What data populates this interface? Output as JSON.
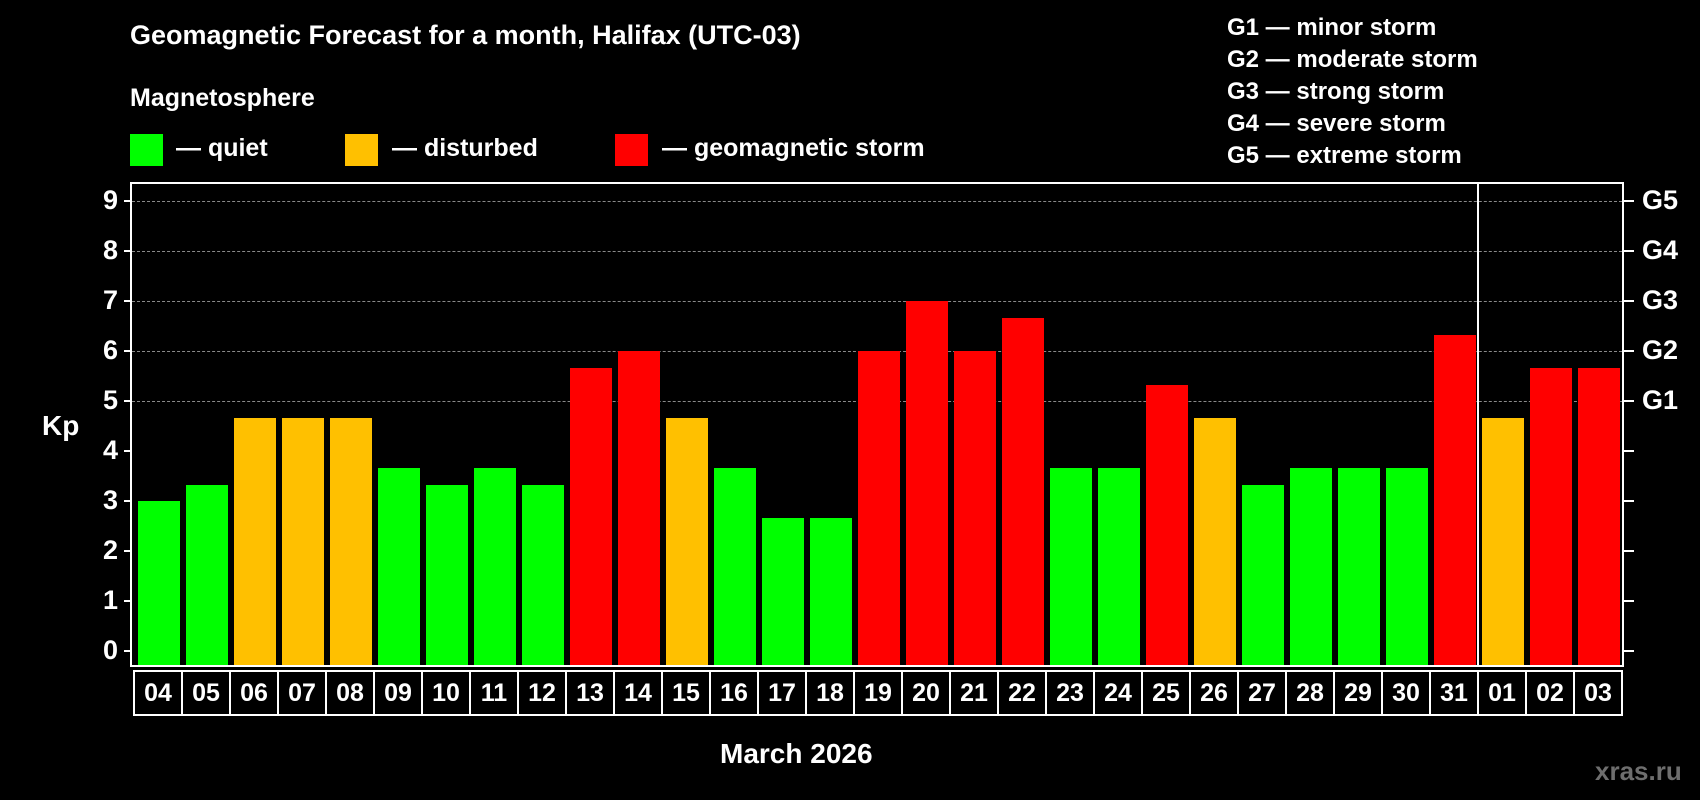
{
  "title": "Geomagnetic Forecast for a month, Halifax (UTC-03)",
  "legend": {
    "heading": "Magnetosphere",
    "items": [
      {
        "label": "— quiet",
        "color": "#00ff00"
      },
      {
        "label": "— disturbed",
        "color": "#ffc000"
      },
      {
        "label": "— geomagnetic storm",
        "color": "#ff0000"
      }
    ]
  },
  "g_scale": [
    "G1 — minor storm",
    "G2 — moderate storm",
    "G3 — strong storm",
    "G4 — severe storm",
    "G5 — extreme storm"
  ],
  "watermark": "xras.ru",
  "chart_data": {
    "type": "bar",
    "title": "Geomagnetic Forecast for a month, Halifax (UTC-03)",
    "xlabel": "March 2026",
    "ylabel": "Kp",
    "ylim": [
      0,
      9
    ],
    "yticks": [
      0,
      1,
      2,
      3,
      4,
      5,
      6,
      7,
      8,
      9
    ],
    "right_axis": [
      {
        "kp": 5,
        "label": "G1"
      },
      {
        "kp": 6,
        "label": "G2"
      },
      {
        "kp": 7,
        "label": "G3"
      },
      {
        "kp": 8,
        "label": "G4"
      },
      {
        "kp": 9,
        "label": "G5"
      }
    ],
    "grid": "dashed horizontal at Kp 5-9",
    "legend_position": "top",
    "month_divider_after": "31",
    "categories": [
      "04",
      "05",
      "06",
      "07",
      "08",
      "09",
      "10",
      "11",
      "12",
      "13",
      "14",
      "15",
      "16",
      "17",
      "18",
      "19",
      "20",
      "21",
      "22",
      "23",
      "24",
      "25",
      "26",
      "27",
      "28",
      "29",
      "30",
      "31",
      "01",
      "02",
      "03"
    ],
    "values": [
      3.0,
      3.33,
      4.67,
      4.67,
      4.67,
      3.67,
      3.33,
      3.67,
      3.33,
      5.67,
      6.0,
      4.67,
      3.67,
      2.67,
      2.67,
      6.0,
      7.0,
      6.0,
      6.67,
      3.67,
      3.67,
      5.33,
      4.67,
      3.33,
      3.67,
      3.67,
      3.67,
      6.33,
      4.67,
      5.67,
      5.67
    ],
    "status": [
      "quiet",
      "quiet",
      "disturbed",
      "disturbed",
      "disturbed",
      "quiet",
      "quiet",
      "quiet",
      "quiet",
      "storm",
      "storm",
      "disturbed",
      "quiet",
      "quiet",
      "quiet",
      "storm",
      "storm",
      "storm",
      "storm",
      "quiet",
      "quiet",
      "storm",
      "disturbed",
      "quiet",
      "quiet",
      "quiet",
      "quiet",
      "storm",
      "disturbed",
      "storm",
      "storm"
    ],
    "colors": {
      "quiet": "#00ff00",
      "disturbed": "#ffc000",
      "storm": "#ff0000"
    }
  }
}
